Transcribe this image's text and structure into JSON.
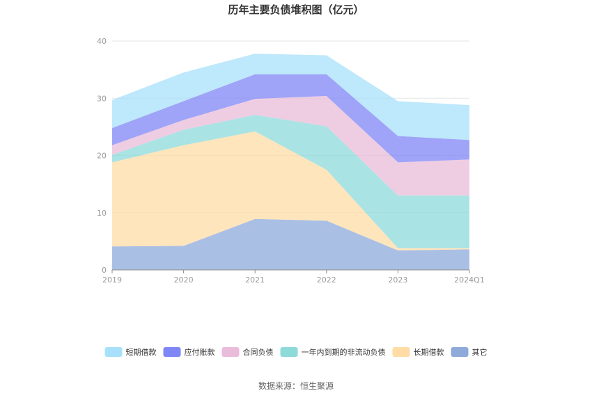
{
  "chart_data": {
    "type": "area",
    "stacked": true,
    "title": "历年主要负债堆积图（亿元）",
    "categories": [
      "2019",
      "2020",
      "2021",
      "2022",
      "2023",
      "2024Q1"
    ],
    "ylim": [
      0,
      40
    ],
    "yticks": [
      0,
      10,
      20,
      30,
      40
    ],
    "grid": true,
    "legend_position": "bottom",
    "series": [
      {
        "name": "其它",
        "color": "#8eaadb",
        "values": [
          4.1,
          4.2,
          8.9,
          8.6,
          3.4,
          3.6
        ]
      },
      {
        "name": "长期借款",
        "color": "#ffdca6",
        "values": [
          14.7,
          17.6,
          15.3,
          8.9,
          0.4,
          0.2
        ]
      },
      {
        "name": "一年内到期的非流动负债",
        "color": "#8ed9d9",
        "values": [
          1.3,
          2.7,
          2.9,
          7.6,
          9.2,
          9.2
        ]
      },
      {
        "name": "合同负债",
        "color": "#e8bcda",
        "values": [
          1.7,
          1.7,
          2.8,
          5.3,
          5.8,
          6.3
        ]
      },
      {
        "name": "应付账款",
        "color": "#7f86f6",
        "values": [
          3.0,
          3.3,
          4.3,
          3.8,
          4.6,
          3.4
        ]
      },
      {
        "name": "短期借款",
        "color": "#a8e0fa",
        "values": [
          4.9,
          5.0,
          3.6,
          3.3,
          6.1,
          6.1
        ]
      }
    ],
    "legend_order": [
      "短期借款",
      "应付账款",
      "合同负债",
      "一年内到期的非流动负债",
      "长期借款",
      "其它"
    ]
  },
  "source_text": "数据来源：恒生聚源"
}
